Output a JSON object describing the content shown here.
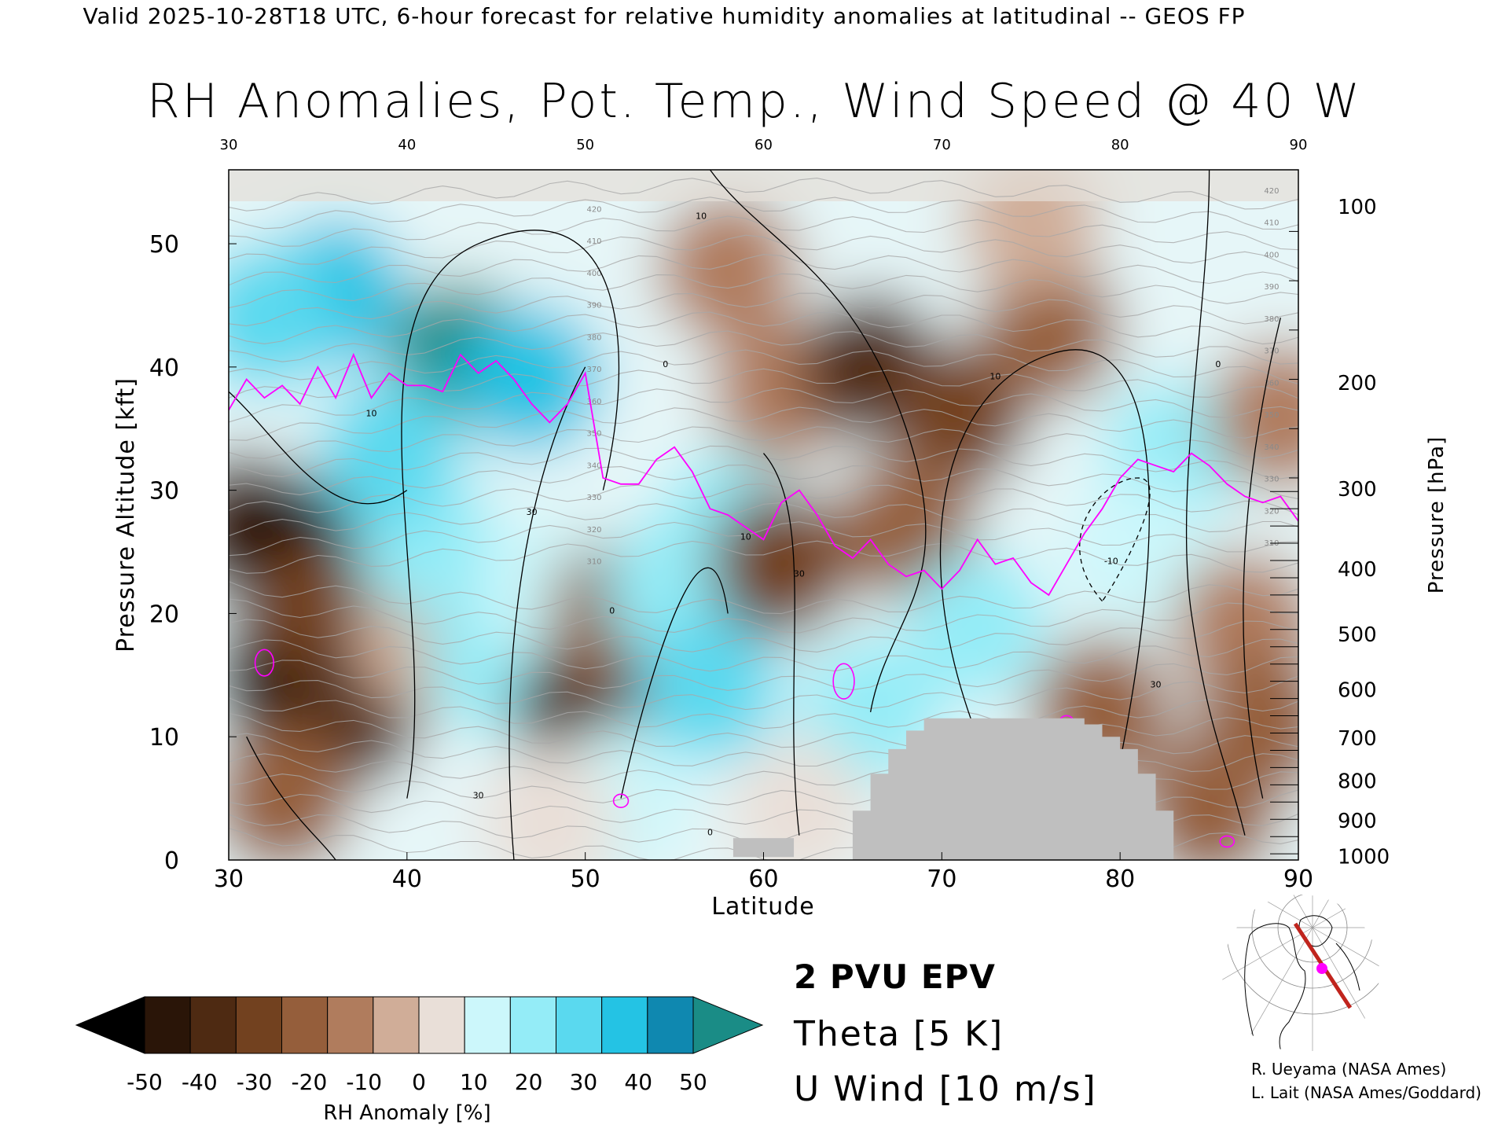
{
  "header": "Valid 2025-10-28T18 UTC, 6-hour forecast for relative humidity anomalies at latitudinal -- GEOS FP",
  "title": "RH Anomalies, Pot. Temp., Wind Speed @ 40 W",
  "colors": {
    "epv": "#ff00ff",
    "theta": "#a8a8a8",
    "uwind": "#000000",
    "terrain": "#bfbfbf",
    "track": "#c0241d"
  },
  "chart_data": {
    "type": "heatmap",
    "xlabel": "Latitude",
    "ylabel": "Pressure Altitude [kft]",
    "y2label": "Pressure [hPa]",
    "xlim": [
      30,
      90
    ],
    "ylim": [
      0,
      56
    ],
    "x_ticks": [
      "30",
      "40",
      "50",
      "60",
      "70",
      "80",
      "90"
    ],
    "top_ticks": [
      "30",
      "40",
      "50",
      "60",
      "70",
      "80",
      "90"
    ],
    "y_ticks": [
      "0",
      "10",
      "20",
      "30",
      "40",
      "50"
    ],
    "pressure_ticks": [
      {
        "label": "100",
        "kft": 53.0
      },
      {
        "label": "200",
        "kft": 38.7
      },
      {
        "label": "300",
        "kft": 30.1
      },
      {
        "label": "400",
        "kft": 23.6
      },
      {
        "label": "500",
        "kft": 18.3
      },
      {
        "label": "600",
        "kft": 13.8
      },
      {
        "label": "700",
        "kft": 9.9
      },
      {
        "label": "800",
        "kft": 6.4
      },
      {
        "label": "900",
        "kft": 3.2
      },
      {
        "label": "1000",
        "kft": 0.3
      }
    ],
    "rh_anomaly_points": [
      {
        "lat": 33,
        "kft": 15,
        "v": -52
      },
      {
        "lat": 31,
        "kft": 27,
        "v": -48
      },
      {
        "lat": 34,
        "kft": 25,
        "v": -50
      },
      {
        "lat": 35,
        "kft": 20,
        "v": -40
      },
      {
        "lat": 37,
        "kft": 12,
        "v": -45
      },
      {
        "lat": 33,
        "kft": 5,
        "v": -30
      },
      {
        "lat": 41,
        "kft": 18,
        "v": -10
      },
      {
        "lat": 36,
        "kft": 46,
        "v": 45
      },
      {
        "lat": 43,
        "kft": 41,
        "v": 52
      },
      {
        "lat": 47,
        "kft": 39,
        "v": 48
      },
      {
        "lat": 41,
        "kft": 26,
        "v": 22
      },
      {
        "lat": 45,
        "kft": 16,
        "v": 28
      },
      {
        "lat": 48,
        "kft": 22,
        "v": 15
      },
      {
        "lat": 50,
        "kft": 12,
        "v": -42
      },
      {
        "lat": 52,
        "kft": 20,
        "v": -30
      },
      {
        "lat": 52,
        "kft": 5,
        "v": 15
      },
      {
        "lat": 55,
        "kft": 22,
        "v": 20
      },
      {
        "lat": 57,
        "kft": 14,
        "v": 30
      },
      {
        "lat": 58,
        "kft": 27,
        "v": 22
      },
      {
        "lat": 61,
        "kft": 24,
        "v": -32
      },
      {
        "lat": 61,
        "kft": 38,
        "v": -20
      },
      {
        "lat": 66,
        "kft": 40,
        "v": -42
      },
      {
        "lat": 71,
        "kft": 36,
        "v": -38
      },
      {
        "lat": 76,
        "kft": 43,
        "v": -25
      },
      {
        "lat": 68,
        "kft": 27,
        "v": -25
      },
      {
        "lat": 72,
        "kft": 19,
        "v": 22
      },
      {
        "lat": 66,
        "kft": 12,
        "v": 25
      },
      {
        "lat": 79,
        "kft": 12,
        "v": -22
      },
      {
        "lat": 83,
        "kft": 33,
        "v": 22
      },
      {
        "lat": 81,
        "kft": 25,
        "v": 18
      },
      {
        "lat": 87,
        "kft": 19,
        "v": -15
      },
      {
        "lat": 88,
        "kft": 11,
        "v": -28
      },
      {
        "lat": 89,
        "kft": 36,
        "v": -18
      },
      {
        "lat": 58,
        "kft": 48,
        "v": -12
      },
      {
        "lat": 75,
        "kft": 52,
        "v": -8
      },
      {
        "lat": 48,
        "kft": 3,
        "v": 5
      },
      {
        "lat": 62,
        "kft": 4,
        "v": 8
      },
      {
        "lat": 85,
        "kft": 4,
        "v": -22
      },
      {
        "lat": 32,
        "kft": 44,
        "v": 35
      },
      {
        "lat": 39,
        "kft": 33,
        "v": 30
      }
    ],
    "epv_2pvu_line": [
      [
        30,
        36.5
      ],
      [
        31,
        39
      ],
      [
        32,
        37.5
      ],
      [
        33,
        38.5
      ],
      [
        34,
        37
      ],
      [
        35,
        40
      ],
      [
        36,
        37.5
      ],
      [
        37,
        41
      ],
      [
        38,
        37.5
      ],
      [
        39,
        39.5
      ],
      [
        40,
        38.5
      ],
      [
        41,
        38.5
      ],
      [
        42,
        38
      ],
      [
        43,
        41
      ],
      [
        44,
        39.5
      ],
      [
        45,
        40.5
      ],
      [
        46,
        39
      ],
      [
        47,
        37
      ],
      [
        48,
        35.5
      ],
      [
        49,
        37
      ],
      [
        50,
        39.5
      ],
      [
        51,
        31
      ],
      [
        52,
        30.5
      ],
      [
        53,
        30.5
      ],
      [
        54,
        32.5
      ],
      [
        55,
        33.5
      ],
      [
        56,
        31.5
      ],
      [
        57,
        28.5
      ],
      [
        58,
        28
      ],
      [
        59,
        27
      ],
      [
        60,
        26
      ],
      [
        61,
        29
      ],
      [
        62,
        30
      ],
      [
        63,
        28
      ],
      [
        64,
        25.5
      ],
      [
        65,
        24.5
      ],
      [
        66,
        26
      ],
      [
        67,
        24
      ],
      [
        68,
        23
      ],
      [
        69,
        23.5
      ],
      [
        70,
        22
      ],
      [
        71,
        23.5
      ],
      [
        72,
        26
      ],
      [
        73,
        24
      ],
      [
        74,
        24.5
      ],
      [
        75,
        22.5
      ],
      [
        76,
        21.5
      ],
      [
        77,
        24
      ],
      [
        78,
        26.5
      ],
      [
        79,
        28.5
      ],
      [
        80,
        31
      ],
      [
        81,
        32.5
      ],
      [
        82,
        32
      ],
      [
        83,
        31.5
      ],
      [
        84,
        33
      ],
      [
        85,
        32
      ],
      [
        86,
        30.5
      ],
      [
        87,
        29.5
      ],
      [
        88,
        29
      ],
      [
        89,
        29.5
      ],
      [
        90,
        27.5
      ]
    ],
    "theta_levels": [
      "310",
      "320",
      "330",
      "340",
      "350",
      "360",
      "370",
      "380",
      "390",
      "400",
      "410",
      "420"
    ],
    "u_wind_labels": [
      "0",
      "10",
      "30",
      "-10"
    ],
    "terrain": [
      {
        "lat": 58.3,
        "kft": 0.5
      },
      {
        "lat": 61.7,
        "kft": 0.5
      },
      {
        "lat": 65,
        "kft": 4
      },
      {
        "lat": 66,
        "kft": 7
      },
      {
        "lat": 67,
        "kft": 9
      },
      {
        "lat": 68,
        "kft": 10.5
      },
      {
        "lat": 69,
        "kft": 11.5
      },
      {
        "lat": 77,
        "kft": 11.5
      },
      {
        "lat": 78,
        "kft": 11
      },
      {
        "lat": 79,
        "kft": 10
      },
      {
        "lat": 80,
        "kft": 9
      },
      {
        "lat": 81,
        "kft": 7
      },
      {
        "lat": 82,
        "kft": 4
      },
      {
        "lat": 83,
        "kft": 1
      }
    ],
    "colorbar": {
      "label": "RH Anomaly [%]",
      "ticks": [
        "-50",
        "-40",
        "-30",
        "-20",
        "-10",
        "0",
        "10",
        "20",
        "30",
        "40",
        "50"
      ],
      "colors": [
        "#2a1508",
        "#4e2a12",
        "#72411f",
        "#955e3b",
        "#b07c5d",
        "#d0ad98",
        "#e9dfd8",
        "#ccf7fb",
        "#94ecf7",
        "#5ad9ef",
        "#24c3e4",
        "#0f88b0"
      ],
      "under_color": "#000000",
      "over_color": "#1a8c86"
    }
  },
  "legend": {
    "epv_label": "2 PVU EPV",
    "theta_label": "Theta [5 K]",
    "uwind_label": "U Wind [10 m/s]"
  },
  "credits": [
    "R. Ueyama (NASA Ames)",
    "L. Lait (NASA Ames/Goddard)"
  ]
}
